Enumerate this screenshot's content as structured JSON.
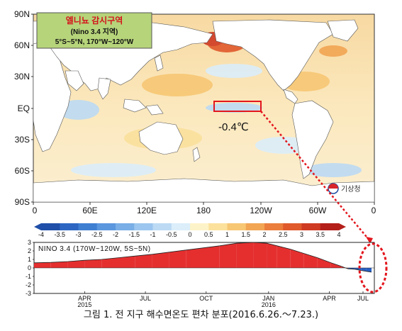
{
  "map": {
    "lat_labels": [
      "90N",
      "60N",
      "30N",
      "EQ",
      "30S",
      "60S",
      "90S"
    ],
    "lon_labels": [
      "0",
      "60E",
      "120E",
      "180",
      "120W",
      "60W",
      "0"
    ],
    "inset": {
      "title": "엘니뇨 감시구역",
      "line2": "(Nino 3.4 지역)",
      "line3": "5°S~5°N, 170°W~120°W"
    },
    "anomaly_value": "-0.4℃",
    "logo_text": "기상청"
  },
  "colorbar": {
    "labels": [
      "-4",
      "-3.5",
      "-3",
      "-2.5",
      "-2",
      "-1.5",
      "-1",
      "-0.5",
      "0",
      "0.5",
      "1",
      "1.5",
      "2",
      "2.5",
      "3",
      "3.5",
      "4"
    ],
    "colors": [
      "#1f4fa8",
      "#2c66c2",
      "#3f7fd2",
      "#5b97de",
      "#79aee6",
      "#9cc6ef",
      "#bcdaf4",
      "#dbeefa",
      "#fdf3c8",
      "#fbe19c",
      "#f7c774",
      "#f2a553",
      "#eb7e3c",
      "#e05a2c",
      "#cf3a22",
      "#b41f1a"
    ]
  },
  "chart_data": {
    "type": "area",
    "title": "NINO 3.4 (170W~120W, 5S~5N)",
    "xlabel": "",
    "ylabel": "",
    "ylim": [
      -3,
      3
    ],
    "y_ticks": [
      "3",
      "2",
      "1",
      "0",
      "-1",
      "-2",
      "-3"
    ],
    "x_ticks": [
      {
        "label": "APR",
        "sub": "2015",
        "t": 0.15
      },
      {
        "label": "JUL",
        "sub": "",
        "t": 0.33
      },
      {
        "label": "OCT",
        "sub": "",
        "t": 0.51
      },
      {
        "label": "JAN",
        "sub": "2016",
        "t": 0.695
      },
      {
        "label": "APR",
        "sub": "",
        "t": 0.875
      },
      {
        "label": "JUL",
        "sub": "",
        "t": 1.0
      }
    ],
    "series": [
      {
        "values": [
          [
            0.0,
            0.6
          ],
          [
            0.05,
            0.65
          ],
          [
            0.1,
            0.75
          ],
          [
            0.15,
            0.9
          ],
          [
            0.2,
            1.0
          ],
          [
            0.25,
            1.2
          ],
          [
            0.3,
            1.4
          ],
          [
            0.35,
            1.6
          ],
          [
            0.4,
            1.85
          ],
          [
            0.45,
            2.1
          ],
          [
            0.5,
            2.35
          ],
          [
            0.55,
            2.6
          ],
          [
            0.6,
            2.9
          ],
          [
            0.65,
            3.0
          ],
          [
            0.69,
            2.9
          ],
          [
            0.72,
            2.6
          ],
          [
            0.76,
            2.2
          ],
          [
            0.8,
            1.7
          ],
          [
            0.84,
            1.2
          ],
          [
            0.88,
            0.6
          ],
          [
            0.91,
            0.2
          ],
          [
            0.93,
            -0.1
          ],
          [
            0.95,
            -0.15
          ],
          [
            0.97,
            -0.3
          ],
          [
            0.985,
            -0.4
          ],
          [
            1.0,
            -0.5
          ]
        ]
      }
    ],
    "colors": {
      "positive": "#e52f2f",
      "negative": "#2760c4"
    }
  },
  "caption": "그림 1. 전 지구 해수면온도 편차 분포(2016.6.26.～7.23.)"
}
